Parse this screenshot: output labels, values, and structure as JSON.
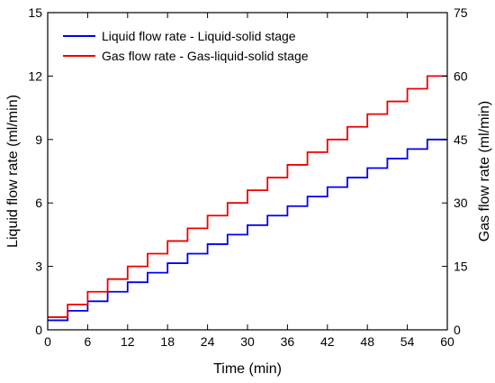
{
  "chart_data": {
    "type": "line",
    "xlabel": "Time (min)",
    "ylabel_left": "Liquid flow rate (ml/min)",
    "ylabel_right": "Gas flow rate (ml/min)",
    "xlim": [
      0,
      60
    ],
    "ylim_left": [
      0,
      15
    ],
    "ylim_right": [
      0,
      75
    ],
    "x_ticks": [
      0,
      6,
      12,
      18,
      24,
      30,
      36,
      42,
      48,
      54,
      60
    ],
    "y_left_ticks": [
      0,
      3,
      6,
      9,
      12,
      15
    ],
    "y_right_ticks": [
      0,
      15,
      30,
      45,
      60,
      75
    ],
    "grid": false,
    "legend_position": "top-left",
    "series": [
      {
        "name": "Liquid flow rate - Liquid-solid stage",
        "color": "#0000ee",
        "axis": "left",
        "step": "post",
        "x": [
          0,
          3,
          6,
          9,
          12,
          15,
          18,
          21,
          24,
          27,
          30,
          33,
          36,
          39,
          42,
          45,
          48,
          51,
          54,
          57,
          60
        ],
        "y": [
          0.45,
          0.9,
          1.35,
          1.8,
          2.25,
          2.7,
          3.15,
          3.6,
          4.05,
          4.5,
          4.95,
          5.4,
          5.85,
          6.3,
          6.75,
          7.2,
          7.65,
          8.1,
          8.55,
          9.0,
          9.0
        ]
      },
      {
        "name": "Gas flow rate - Gas-liquid-solid stage",
        "color": "#ee0000",
        "axis": "right",
        "step": "post",
        "x": [
          0,
          3,
          6,
          9,
          12,
          15,
          18,
          21,
          24,
          27,
          30,
          33,
          36,
          39,
          42,
          45,
          48,
          51,
          54,
          57,
          60
        ],
        "y": [
          3,
          6,
          9,
          12,
          15,
          18,
          21,
          24,
          27,
          30,
          33,
          36,
          39,
          42,
          45,
          48,
          51,
          54,
          57,
          60,
          60
        ]
      }
    ]
  }
}
